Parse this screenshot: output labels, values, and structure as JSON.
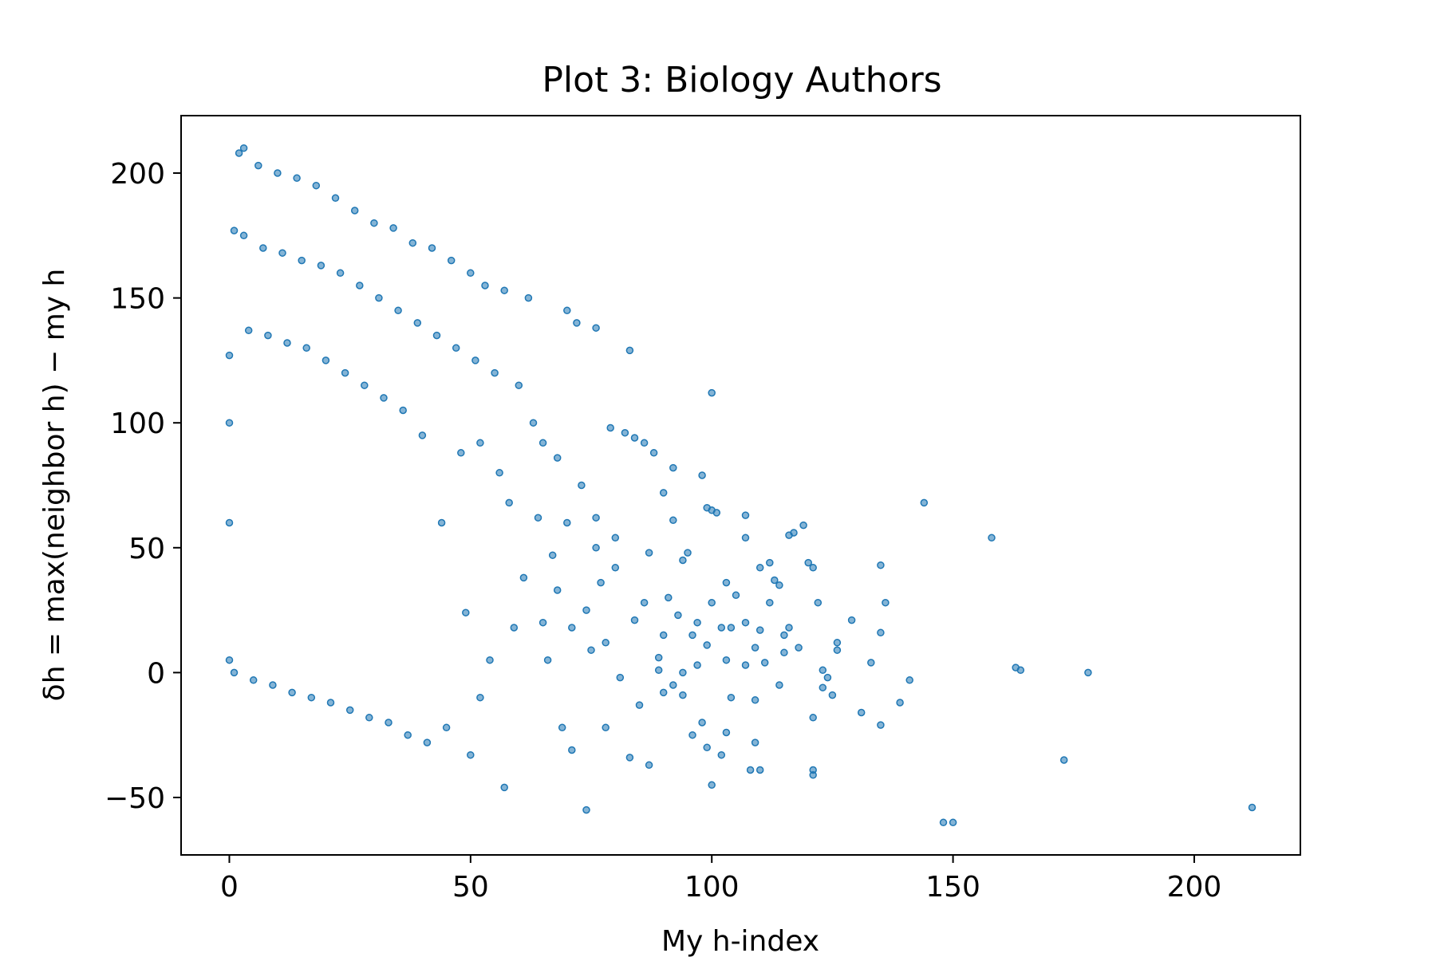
{
  "chart_data": {
    "type": "scatter",
    "title": "Plot 3: Biology Authors",
    "xlabel": "My h-index",
    "ylabel": "δh = max(neighbor h) − my h",
    "xlim": [
      -10,
      222
    ],
    "ylim": [
      -73,
      223
    ],
    "xticks": [
      0,
      50,
      100,
      150,
      200
    ],
    "yticks": [
      -50,
      0,
      50,
      100,
      150,
      200
    ],
    "xtick_labels": [
      "0",
      "50",
      "100",
      "150",
      "200"
    ],
    "ytick_labels": [
      "−50",
      "0",
      "50",
      "100",
      "150",
      "200"
    ],
    "grid": false,
    "marker_color": "#1f77b4",
    "series": [
      {
        "points": [
          [
            212,
            -54
          ],
          [
            178,
            0
          ],
          [
            173,
            -35
          ],
          [
            164,
            1
          ],
          [
            163,
            2
          ],
          [
            158,
            54
          ],
          [
            150,
            -60
          ],
          [
            148,
            -60
          ],
          [
            144,
            68
          ],
          [
            141,
            -3
          ],
          [
            139,
            -12
          ],
          [
            136,
            28
          ],
          [
            135,
            43
          ],
          [
            135,
            16
          ],
          [
            135,
            -21
          ],
          [
            133,
            4
          ],
          [
            131,
            -16
          ],
          [
            129,
            21
          ],
          [
            126,
            9
          ],
          [
            126,
            12
          ],
          [
            125,
            -9
          ],
          [
            124,
            -2
          ],
          [
            123,
            -6
          ],
          [
            123,
            1
          ],
          [
            122,
            28
          ],
          [
            121,
            42
          ],
          [
            121,
            -18
          ],
          [
            121,
            -39
          ],
          [
            121,
            -41
          ],
          [
            120,
            44
          ],
          [
            119,
            59
          ],
          [
            118,
            10
          ],
          [
            117,
            56
          ],
          [
            116,
            18
          ],
          [
            116,
            55
          ],
          [
            115,
            8
          ],
          [
            115,
            15
          ],
          [
            114,
            -5
          ],
          [
            114,
            35
          ],
          [
            113,
            37
          ],
          [
            112,
            28
          ],
          [
            112,
            44
          ],
          [
            111,
            4
          ],
          [
            110,
            17
          ],
          [
            110,
            42
          ],
          [
            110,
            -39
          ],
          [
            109,
            10
          ],
          [
            109,
            -11
          ],
          [
            109,
            -28
          ],
          [
            108,
            -39
          ],
          [
            107,
            3
          ],
          [
            107,
            54
          ],
          [
            107,
            63
          ],
          [
            107,
            20
          ],
          [
            105,
            31
          ],
          [
            104,
            18
          ],
          [
            104,
            -10
          ],
          [
            103,
            5
          ],
          [
            103,
            36
          ],
          [
            103,
            -24
          ],
          [
            102,
            -33
          ],
          [
            102,
            18
          ],
          [
            101,
            64
          ],
          [
            100,
            65
          ],
          [
            100,
            28
          ],
          [
            100,
            112
          ],
          [
            100,
            -45
          ],
          [
            99,
            66
          ],
          [
            99,
            11
          ],
          [
            99,
            -30
          ],
          [
            98,
            -20
          ],
          [
            98,
            79
          ],
          [
            97,
            3
          ],
          [
            97,
            20
          ],
          [
            96,
            -25
          ],
          [
            96,
            15
          ],
          [
            95,
            48
          ],
          [
            94,
            0
          ],
          [
            94,
            -9
          ],
          [
            94,
            45
          ],
          [
            93,
            23
          ],
          [
            92,
            61
          ],
          [
            92,
            -5
          ],
          [
            92,
            82
          ],
          [
            91,
            30
          ],
          [
            90,
            -8
          ],
          [
            90,
            72
          ],
          [
            90,
            15
          ],
          [
            89,
            1
          ],
          [
            89,
            6
          ],
          [
            88,
            88
          ],
          [
            87,
            -37
          ],
          [
            87,
            48
          ],
          [
            86,
            28
          ],
          [
            86,
            92
          ],
          [
            85,
            -13
          ],
          [
            84,
            21
          ],
          [
            84,
            94
          ],
          [
            83,
            129
          ],
          [
            83,
            -34
          ],
          [
            82,
            96
          ],
          [
            81,
            -2
          ],
          [
            80,
            42
          ],
          [
            80,
            54
          ],
          [
            79,
            98
          ],
          [
            78,
            -22
          ],
          [
            78,
            12
          ],
          [
            77,
            36
          ],
          [
            76,
            50
          ],
          [
            76,
            62
          ],
          [
            76,
            138
          ],
          [
            75,
            9
          ],
          [
            74,
            -55
          ],
          [
            74,
            25
          ],
          [
            73,
            75
          ],
          [
            72,
            140
          ],
          [
            71,
            -31
          ],
          [
            71,
            18
          ],
          [
            70,
            60
          ],
          [
            70,
            145
          ],
          [
            69,
            -22
          ],
          [
            68,
            86
          ],
          [
            68,
            33
          ],
          [
            67,
            47
          ],
          [
            66,
            5
          ],
          [
            65,
            92
          ],
          [
            65,
            20
          ],
          [
            64,
            62
          ],
          [
            63,
            100
          ],
          [
            62,
            150
          ],
          [
            61,
            38
          ],
          [
            60,
            115
          ],
          [
            59,
            18
          ],
          [
            58,
            68
          ],
          [
            57,
            -46
          ],
          [
            57,
            153
          ],
          [
            56,
            80
          ],
          [
            55,
            120
          ],
          [
            54,
            5
          ],
          [
            53,
            155
          ],
          [
            52,
            -10
          ],
          [
            52,
            92
          ],
          [
            51,
            125
          ],
          [
            50,
            -33
          ],
          [
            50,
            160
          ],
          [
            49,
            24
          ],
          [
            48,
            88
          ],
          [
            47,
            130
          ],
          [
            46,
            165
          ],
          [
            45,
            -22
          ],
          [
            44,
            60
          ],
          [
            43,
            135
          ],
          [
            42,
            170
          ],
          [
            41,
            -28
          ],
          [
            40,
            95
          ],
          [
            39,
            140
          ],
          [
            38,
            172
          ],
          [
            37,
            -25
          ],
          [
            36,
            105
          ],
          [
            35,
            145
          ],
          [
            34,
            178
          ],
          [
            33,
            -20
          ],
          [
            32,
            110
          ],
          [
            31,
            150
          ],
          [
            30,
            180
          ],
          [
            29,
            -18
          ],
          [
            28,
            115
          ],
          [
            27,
            155
          ],
          [
            26,
            185
          ],
          [
            25,
            -15
          ],
          [
            24,
            120
          ],
          [
            23,
            160
          ],
          [
            22,
            190
          ],
          [
            21,
            -12
          ],
          [
            20,
            125
          ],
          [
            19,
            163
          ],
          [
            18,
            195
          ],
          [
            17,
            -10
          ],
          [
            16,
            130
          ],
          [
            15,
            165
          ],
          [
            14,
            198
          ],
          [
            13,
            -8
          ],
          [
            12,
            132
          ],
          [
            11,
            168
          ],
          [
            10,
            200
          ],
          [
            9,
            -5
          ],
          [
            8,
            135
          ],
          [
            7,
            170
          ],
          [
            6,
            203
          ],
          [
            5,
            -3
          ],
          [
            4,
            137
          ],
          [
            3,
            175
          ],
          [
            2,
            208
          ],
          [
            1,
            0
          ],
          [
            0,
            5
          ],
          [
            0,
            127
          ],
          [
            1,
            177
          ],
          [
            3,
            210
          ],
          [
            0,
            60
          ],
          [
            0,
            100
          ]
        ]
      }
    ]
  }
}
